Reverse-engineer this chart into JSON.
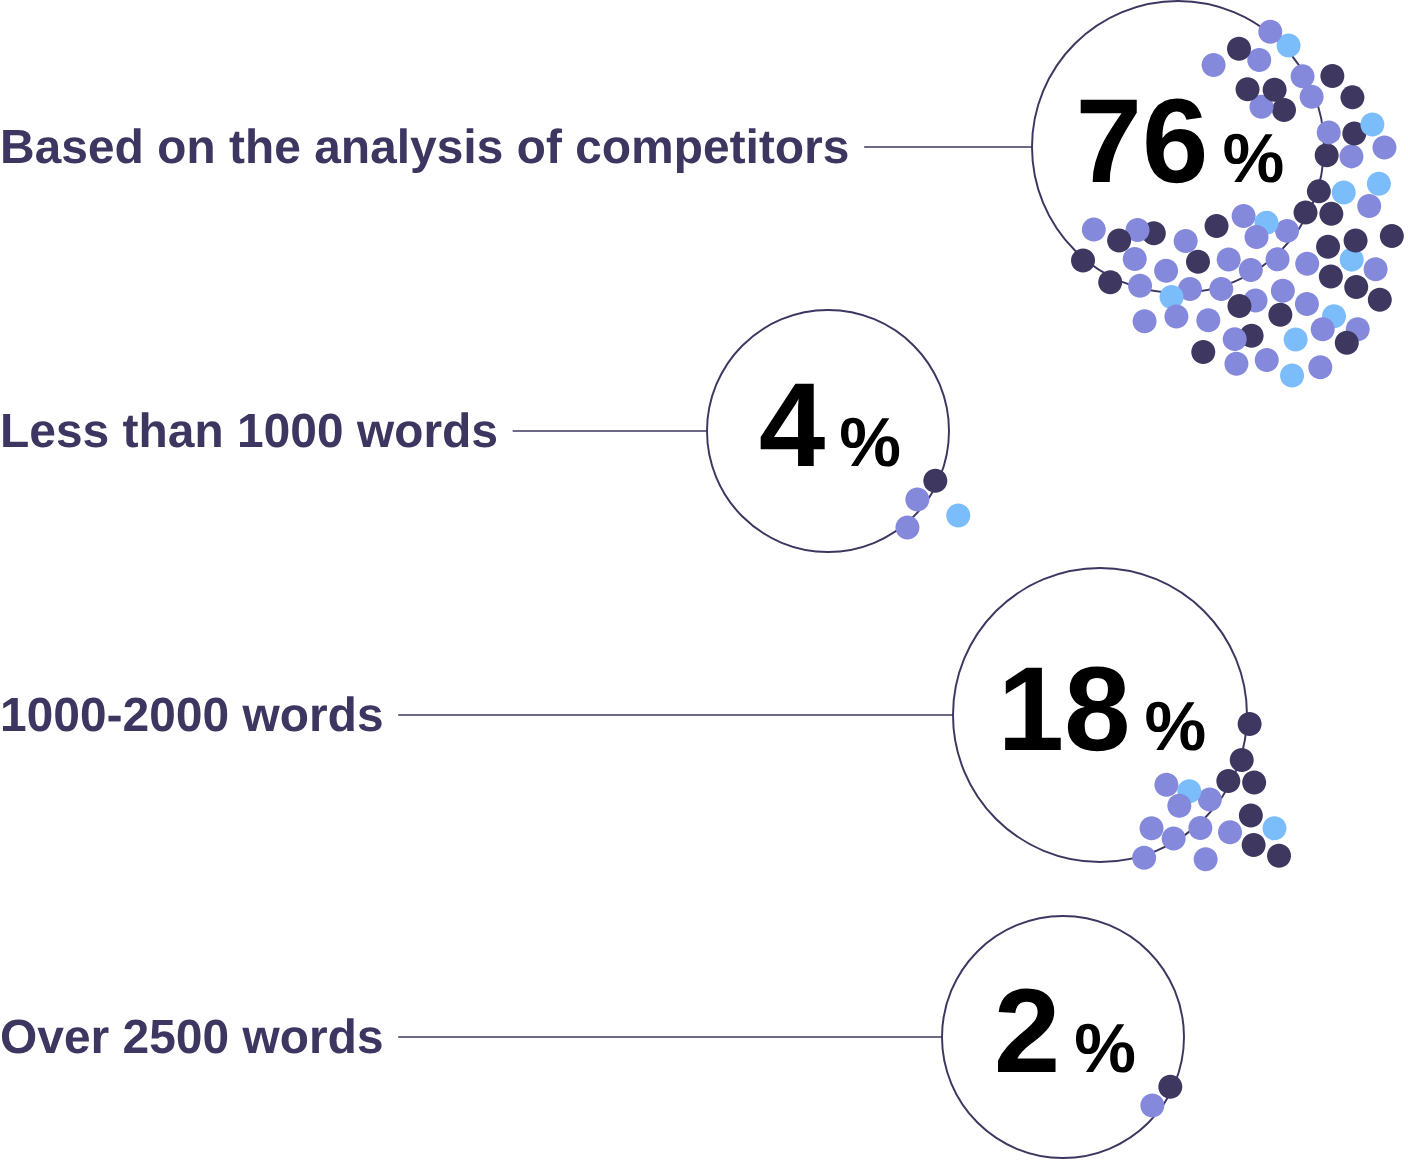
{
  "chart_data": {
    "type": "other",
    "categories": [
      "Based on the analysis of competitors",
      "Less than 1000 words",
      "1000-2000 words",
      "Over 2500 words"
    ],
    "values": [
      76,
      4,
      18,
      2
    ],
    "value_labels": [
      "76 %",
      "4 %",
      "18 %",
      "2 %"
    ]
  }
}
